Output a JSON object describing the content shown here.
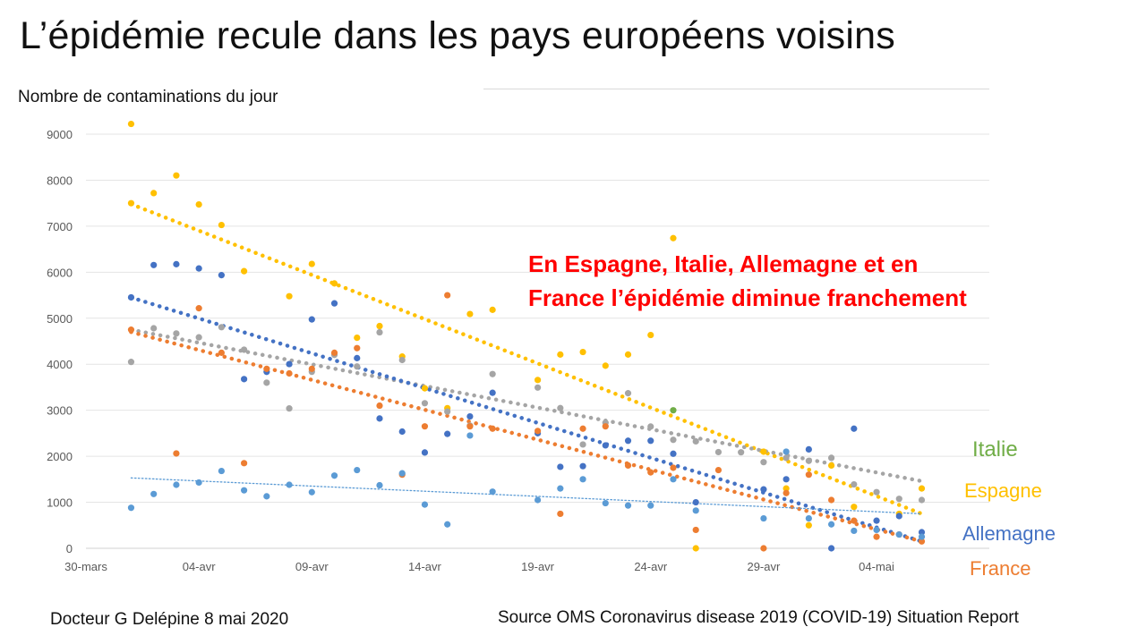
{
  "title": "L’épidémie recule dans les pays européens voisins",
  "annotation": {
    "line1": "En Espagne, Italie, Allemagne  et en",
    "line2": "France l’épidémie diminue franchement"
  },
  "footer": {
    "author": "Docteur G Delépine 8 mai 2020",
    "source": "Source OMS Coronavirus disease 2019 (COVID-19) Situation Report"
  },
  "colors": {
    "Italie": "#70ad47",
    "Espagne": "#ffc000",
    "Allemagne": "#4472c4",
    "France": "#ed7d31",
    "grey": "#a5a5a5",
    "lightblue": "#5b9bd5",
    "annotation": "#ff0000"
  },
  "chart_data": {
    "type": "scatter",
    "title": "",
    "ylabel": "Nombre de contaminations du jour",
    "xlabel": "",
    "ylim": [
      0,
      9000
    ],
    "yticks": [
      0,
      1000,
      2000,
      3000,
      4000,
      5000,
      6000,
      7000,
      8000,
      9000
    ],
    "x_range_days": [
      0,
      39
    ],
    "xticks": [
      {
        "day": 0,
        "label": "30-mars"
      },
      {
        "day": 5,
        "label": "04-avr"
      },
      {
        "day": 10,
        "label": "09-avr"
      },
      {
        "day": 15,
        "label": "14-avr"
      },
      {
        "day": 20,
        "label": "19-avr"
      },
      {
        "day": 25,
        "label": "24-avr"
      },
      {
        "day": 30,
        "label": "29-avr"
      },
      {
        "day": 35,
        "label": "04-mai"
      }
    ],
    "grid": true,
    "legend": [
      "Italie",
      "Espagne",
      "Allemagne",
      "France"
    ],
    "series": [
      {
        "name": "Espagne",
        "color": "#ffc000",
        "points": [
          [
            2,
            9222
          ],
          [
            2,
            7500
          ],
          [
            3,
            7719
          ],
          [
            4,
            8102
          ],
          [
            5,
            7472
          ],
          [
            6,
            7026
          ],
          [
            7,
            6023
          ],
          [
            9,
            5478
          ],
          [
            10,
            6180
          ],
          [
            11,
            5756
          ],
          [
            12,
            4576
          ],
          [
            13,
            4830
          ],
          [
            14,
            4167
          ],
          [
            15,
            3477
          ],
          [
            16,
            3045
          ],
          [
            17,
            5092
          ],
          [
            18,
            5183
          ],
          [
            20,
            3658
          ],
          [
            21,
            4211
          ],
          [
            22,
            4266
          ],
          [
            23,
            3968
          ],
          [
            24,
            4211
          ],
          [
            25,
            4635
          ],
          [
            26,
            6740
          ],
          [
            27,
            0
          ],
          [
            30,
            2100
          ],
          [
            31,
            1300
          ],
          [
            32,
            500
          ],
          [
            33,
            1800
          ],
          [
            34,
            900
          ],
          [
            36,
            750
          ],
          [
            37,
            1300
          ]
        ],
        "trend": [
          7480,
          750
        ]
      },
      {
        "name": "Italie",
        "color": "#70ad47",
        "points": [
          [
            26,
            3000
          ]
        ]
      },
      {
        "name": "Italie (gris)",
        "color": "#a5a5a5",
        "points": [
          [
            2,
            4050
          ],
          [
            3,
            4782
          ],
          [
            4,
            4668
          ],
          [
            5,
            4585
          ],
          [
            6,
            4805
          ],
          [
            7,
            4316
          ],
          [
            8,
            3599
          ],
          [
            9,
            3039
          ],
          [
            10,
            3836
          ],
          [
            11,
            4204
          ],
          [
            12,
            3951
          ],
          [
            13,
            4694
          ],
          [
            14,
            4092
          ],
          [
            15,
            3153
          ],
          [
            16,
            2972
          ],
          [
            17,
            2667
          ],
          [
            18,
            3786
          ],
          [
            20,
            3493
          ],
          [
            21,
            3047
          ],
          [
            22,
            2256
          ],
          [
            23,
            2729
          ],
          [
            24,
            3370
          ],
          [
            25,
            2646
          ],
          [
            26,
            2357
          ],
          [
            27,
            2324
          ],
          [
            28,
            2091
          ],
          [
            29,
            2086
          ],
          [
            30,
            1872
          ],
          [
            31,
            1965
          ],
          [
            32,
            1900
          ],
          [
            33,
            1965
          ],
          [
            34,
            1389
          ],
          [
            35,
            1221
          ],
          [
            36,
            1075
          ],
          [
            37,
            1050
          ]
        ],
        "trend": [
          4750,
          1460
        ]
      },
      {
        "name": "Allemagne",
        "color": "#4472c4",
        "points": [
          [
            2,
            5453
          ],
          [
            3,
            6156
          ],
          [
            4,
            6174
          ],
          [
            5,
            6082
          ],
          [
            6,
            5936
          ],
          [
            7,
            3677
          ],
          [
            8,
            3834
          ],
          [
            9,
            4003
          ],
          [
            10,
            4974
          ],
          [
            11,
            5323
          ],
          [
            12,
            4133
          ],
          [
            13,
            2821
          ],
          [
            14,
            2537
          ],
          [
            15,
            2082
          ],
          [
            16,
            2486
          ],
          [
            17,
            2866
          ],
          [
            18,
            3380
          ],
          [
            20,
            2500
          ],
          [
            21,
            1770
          ],
          [
            22,
            1785
          ],
          [
            23,
            2237
          ],
          [
            24,
            2337
          ],
          [
            25,
            2337
          ],
          [
            26,
            2055
          ],
          [
            27,
            1000
          ],
          [
            30,
            1280
          ],
          [
            31,
            1500
          ],
          [
            32,
            2150
          ],
          [
            33,
            0
          ],
          [
            34,
            2600
          ],
          [
            35,
            600
          ],
          [
            36,
            700
          ],
          [
            37,
            350
          ]
        ],
        "trend": [
          5450,
          150
        ]
      },
      {
        "name": "France",
        "color": "#ed7d31",
        "points": [
          [
            2,
            4750
          ],
          [
            4,
            2061
          ],
          [
            5,
            5217
          ],
          [
            6,
            4250
          ],
          [
            7,
            1850
          ],
          [
            8,
            3900
          ],
          [
            9,
            3800
          ],
          [
            10,
            3900
          ],
          [
            11,
            4250
          ],
          [
            12,
            4350
          ],
          [
            13,
            3100
          ],
          [
            14,
            1600
          ],
          [
            15,
            2650
          ],
          [
            16,
            5500
          ],
          [
            17,
            2650
          ],
          [
            18,
            2600
          ],
          [
            20,
            2550
          ],
          [
            21,
            750
          ],
          [
            22,
            2600
          ],
          [
            23,
            2650
          ],
          [
            24,
            1800
          ],
          [
            25,
            1650
          ],
          [
            26,
            1750
          ],
          [
            27,
            400
          ],
          [
            28,
            1700
          ],
          [
            30,
            0
          ],
          [
            31,
            1200
          ],
          [
            32,
            1600
          ],
          [
            33,
            1050
          ],
          [
            34,
            600
          ],
          [
            35,
            250
          ],
          [
            36,
            300
          ],
          [
            37,
            150
          ]
        ],
        "trend": [
          4700,
          150
        ]
      },
      {
        "name": "Bleu clair",
        "color": "#5b9bd5",
        "points": [
          [
            2,
            880
          ],
          [
            3,
            1180
          ],
          [
            4,
            1380
          ],
          [
            5,
            1430
          ],
          [
            6,
            1680
          ],
          [
            7,
            1260
          ],
          [
            8,
            1130
          ],
          [
            9,
            1380
          ],
          [
            10,
            1220
          ],
          [
            11,
            1580
          ],
          [
            12,
            1700
          ],
          [
            13,
            1370
          ],
          [
            14,
            1630
          ],
          [
            15,
            950
          ],
          [
            16,
            520
          ],
          [
            17,
            2450
          ],
          [
            18,
            1230
          ],
          [
            20,
            1050
          ],
          [
            21,
            1300
          ],
          [
            22,
            1500
          ],
          [
            23,
            980
          ],
          [
            24,
            930
          ],
          [
            25,
            930
          ],
          [
            26,
            1500
          ],
          [
            27,
            820
          ],
          [
            30,
            650
          ],
          [
            31,
            2100
          ],
          [
            32,
            650
          ],
          [
            33,
            520
          ],
          [
            34,
            380
          ],
          [
            35,
            400
          ],
          [
            36,
            300
          ],
          [
            37,
            250
          ]
        ],
        "trend": [
          1530,
          750
        ]
      }
    ],
    "legend_labels": [
      {
        "name": "Italie",
        "color": "#70ad47"
      },
      {
        "name": "Espagne",
        "color": "#ffc000"
      },
      {
        "name": "Allemagne",
        "color": "#4472c4"
      },
      {
        "name": "France",
        "color": "#ed7d31"
      }
    ]
  }
}
